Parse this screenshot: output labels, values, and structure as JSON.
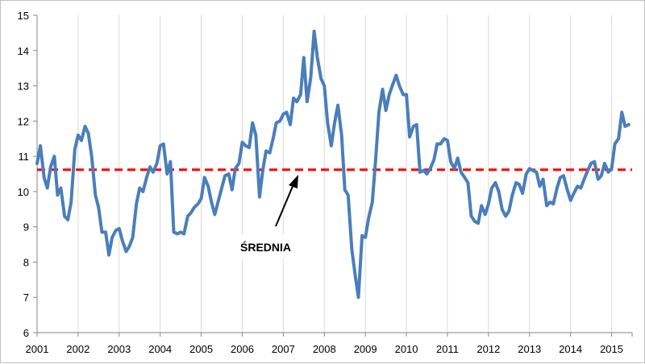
{
  "chart_data": {
    "type": "line",
    "title": "",
    "xlabel": "",
    "ylabel": "",
    "xlim": [
      2001,
      2015.5
    ],
    "ylim": [
      6,
      15
    ],
    "y_ticks": [
      6,
      7,
      8,
      9,
      10,
      11,
      12,
      13,
      14,
      15
    ],
    "x_ticks": [
      2001,
      2002,
      2003,
      2004,
      2005,
      2006,
      2007,
      2008,
      2009,
      2010,
      2011,
      2012,
      2013,
      2014,
      2015
    ],
    "x_tick_labels": [
      "2001",
      "2002",
      "2003",
      "2004",
      "2005",
      "2006",
      "2007",
      "2008",
      "2009",
      "2010",
      "2011",
      "2012",
      "2013",
      "2014",
      "2015"
    ],
    "grid": "vertical",
    "legend": "none",
    "colors": {
      "series": "#4a7ebb",
      "average": "#ff0000",
      "grid": "#d9d9d9",
      "axis": "#868686"
    },
    "average": {
      "label": "ŚREDNIA",
      "value": 10.62
    },
    "series": [
      {
        "x": [
          2001.0,
          2001.08,
          2001.17,
          2001.25,
          2001.33,
          2001.42,
          2001.5,
          2001.58,
          2001.67,
          2001.75,
          2001.83,
          2001.92,
          2002.0,
          2002.08,
          2002.17,
          2002.25,
          2002.33,
          2002.42,
          2002.5,
          2002.58,
          2002.67,
          2002.75,
          2002.83,
          2002.92,
          2003.0,
          2003.08,
          2003.17,
          2003.25,
          2003.33,
          2003.42,
          2003.5,
          2003.58,
          2003.67,
          2003.75,
          2003.83,
          2003.92,
          2004.0,
          2004.08,
          2004.17,
          2004.25,
          2004.33,
          2004.42,
          2004.5,
          2004.58,
          2004.67,
          2004.75,
          2004.83,
          2004.92,
          2005.0,
          2005.08,
          2005.17,
          2005.25,
          2005.33,
          2005.42,
          2005.5,
          2005.58,
          2005.67,
          2005.75,
          2005.83,
          2005.92,
          2006.0,
          2006.08,
          2006.17,
          2006.25,
          2006.33,
          2006.42,
          2006.5,
          2006.58,
          2006.67,
          2006.75,
          2006.83,
          2006.92,
          2007.0,
          2007.08,
          2007.17,
          2007.25,
          2007.33,
          2007.42,
          2007.5,
          2007.58,
          2007.67,
          2007.75,
          2007.83,
          2007.92,
          2008.0,
          2008.08,
          2008.17,
          2008.25,
          2008.33,
          2008.42,
          2008.5,
          2008.58,
          2008.67,
          2008.75,
          2008.83,
          2008.92,
          2009.0,
          2009.08,
          2009.17,
          2009.25,
          2009.33,
          2009.42,
          2009.5,
          2009.58,
          2009.67,
          2009.75,
          2009.83,
          2009.92,
          2010.0,
          2010.08,
          2010.17,
          2010.25,
          2010.33,
          2010.42,
          2010.5,
          2010.58,
          2010.67,
          2010.75,
          2010.83,
          2010.92,
          2011.0,
          2011.08,
          2011.17,
          2011.25,
          2011.33,
          2011.42,
          2011.5,
          2011.58,
          2011.67,
          2011.75,
          2011.83,
          2011.92,
          2012.0,
          2012.08,
          2012.17,
          2012.25,
          2012.33,
          2012.42,
          2012.5,
          2012.58,
          2012.67,
          2012.75,
          2012.83,
          2012.92,
          2013.0,
          2013.08,
          2013.17,
          2013.25,
          2013.33,
          2013.42,
          2013.5,
          2013.58,
          2013.67,
          2013.75,
          2013.83,
          2013.92,
          2014.0,
          2014.08,
          2014.17,
          2014.25,
          2014.33,
          2014.42,
          2014.5,
          2014.58,
          2014.67,
          2014.75,
          2014.83,
          2014.92,
          2015.0,
          2015.08,
          2015.17,
          2015.25,
          2015.33,
          2015.42
        ],
        "values": [
          10.8,
          11.3,
          10.4,
          10.1,
          10.7,
          11.0,
          9.9,
          10.1,
          9.3,
          9.2,
          9.7,
          11.2,
          11.6,
          11.45,
          11.85,
          11.65,
          11.0,
          9.9,
          9.55,
          8.85,
          8.85,
          8.2,
          8.7,
          8.9,
          8.95,
          8.6,
          8.3,
          8.45,
          8.7,
          9.65,
          10.1,
          10.0,
          10.4,
          10.7,
          10.55,
          10.8,
          11.3,
          11.35,
          10.5,
          10.85,
          8.85,
          8.8,
          8.85,
          8.8,
          9.3,
          9.4,
          9.55,
          9.65,
          9.8,
          10.4,
          10.15,
          9.7,
          9.35,
          9.75,
          10.1,
          10.45,
          10.5,
          10.05,
          10.65,
          10.8,
          11.4,
          11.3,
          11.25,
          11.95,
          11.6,
          9.85,
          10.6,
          11.15,
          11.1,
          11.5,
          11.95,
          12.0,
          12.2,
          12.25,
          11.9,
          12.65,
          12.55,
          12.75,
          13.8,
          12.55,
          13.25,
          14.55,
          13.8,
          13.2,
          13.0,
          11.95,
          11.3,
          11.95,
          12.45,
          11.6,
          10.05,
          9.9,
          8.35,
          7.65,
          7.0,
          8.75,
          8.7,
          9.25,
          9.7,
          10.9,
          12.25,
          12.9,
          12.3,
          12.75,
          13.05,
          13.3,
          13.0,
          12.75,
          12.75,
          11.55,
          11.85,
          11.9,
          10.55,
          10.6,
          10.5,
          10.65,
          10.9,
          11.35,
          11.35,
          11.5,
          11.45,
          10.85,
          10.65,
          10.95,
          10.55,
          10.4,
          10.25,
          9.3,
          9.15,
          9.1,
          9.6,
          9.35,
          9.65,
          10.1,
          10.25,
          10.0,
          9.5,
          9.3,
          9.45,
          9.9,
          10.25,
          10.2,
          9.95,
          10.5,
          10.65,
          10.6,
          10.55,
          10.15,
          10.35,
          9.6,
          9.7,
          9.65,
          10.1,
          10.4,
          10.45,
          10.05,
          9.75,
          9.95,
          10.15,
          10.1,
          10.35,
          10.6,
          10.8,
          10.85,
          10.35,
          10.45,
          10.8,
          10.55,
          10.65,
          11.35,
          11.5,
          12.25,
          11.85,
          11.9
        ]
      }
    ]
  }
}
